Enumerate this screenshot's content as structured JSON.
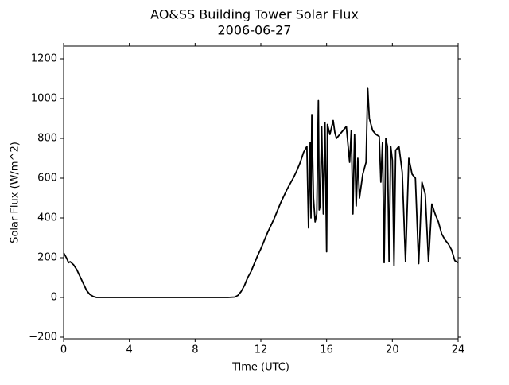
{
  "chart_data": {
    "type": "line",
    "title": "AO&SS Building Tower Solar Flux",
    "subtitle": "2006-06-27",
    "xlabel": "Time (UTC)",
    "ylabel": "Solar Flux (W/m^2)",
    "xlim": [
      0,
      24
    ],
    "xticks": [
      0,
      4,
      8,
      12,
      16,
      20,
      24
    ],
    "ylim": [
      -208,
      1264
    ],
    "yticks": [
      {
        "value": -200,
        "label": "−200"
      },
      0,
      200,
      400,
      600,
      800,
      1000,
      1200
    ],
    "grid": false,
    "series": [
      {
        "name": "Solar Flux",
        "color": "#000000",
        "x": [
          0,
          0.2,
          0.3,
          0.4,
          0.6,
          0.8,
          1.0,
          1.2,
          1.4,
          1.6,
          1.8,
          2.0,
          4,
          8,
          10,
          10.4,
          10.6,
          10.8,
          11.0,
          11.2,
          11.4,
          11.6,
          11.8,
          12.0,
          12.2,
          12.4,
          12.6,
          12.8,
          13.0,
          13.2,
          13.4,
          13.6,
          13.8,
          14.0,
          14.2,
          14.4,
          14.6,
          14.8,
          14.9,
          15.0,
          15.05,
          15.1,
          15.2,
          15.3,
          15.4,
          15.5,
          15.55,
          15.6,
          15.7,
          15.8,
          15.9,
          16.0,
          16.05,
          16.2,
          16.4,
          16.5,
          16.6,
          16.8,
          17.0,
          17.2,
          17.4,
          17.5,
          17.6,
          17.7,
          17.8,
          17.9,
          18.0,
          18.2,
          18.4,
          18.5,
          18.6,
          18.8,
          19.0,
          19.2,
          19.3,
          19.4,
          19.5,
          19.6,
          19.7,
          19.8,
          19.9,
          20.0,
          20.1,
          20.2,
          20.4,
          20.6,
          20.8,
          21.0,
          21.2,
          21.4,
          21.6,
          21.8,
          22.0,
          22.2,
          22.4,
          22.6,
          22.8,
          23.0,
          23.2,
          23.4,
          23.6,
          23.8,
          24.0
        ],
        "values": [
          225,
          195,
          175,
          180,
          165,
          140,
          105,
          70,
          35,
          15,
          5,
          0,
          0,
          0,
          0,
          2,
          10,
          30,
          60,
          100,
          130,
          170,
          210,
          245,
          285,
          325,
          360,
          395,
          435,
          475,
          510,
          545,
          575,
          605,
          640,
          680,
          730,
          760,
          350,
          780,
          400,
          920,
          500,
          380,
          420,
          990,
          440,
          460,
          860,
          420,
          880,
          230,
          870,
          820,
          890,
          830,
          800,
          820,
          840,
          860,
          680,
          840,
          420,
          820,
          460,
          700,
          500,
          620,
          680,
          1055,
          900,
          840,
          820,
          810,
          580,
          780,
          175,
          800,
          760,
          180,
          760,
          690,
          160,
          740,
          760,
          630,
          180,
          700,
          620,
          600,
          170,
          580,
          520,
          180,
          470,
          420,
          380,
          320,
          290,
          270,
          240,
          185,
          175
        ]
      }
    ]
  }
}
